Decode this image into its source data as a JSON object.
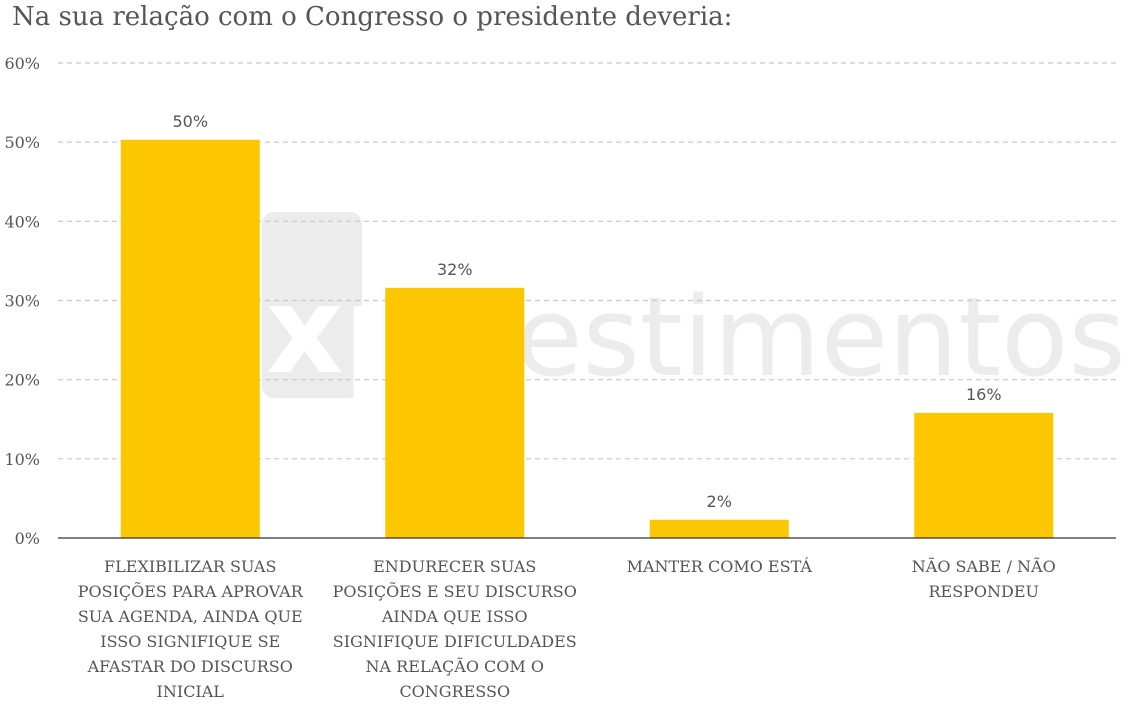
{
  "title": "Na sua relação com o Congresso o presidente deveria:",
  "colors": {
    "bar": "#FDC700",
    "grid": "#c8c8c8",
    "axis": "#333333",
    "text": "#555555",
    "watermark": "#ececec"
  },
  "watermark": {
    "logo_text": "xp",
    "text": "nvestimentos"
  },
  "chart_data": {
    "type": "bar",
    "title": "Na sua relação com o Congresso o presidente deveria:",
    "categories": [
      "FLEXIBILIZAR SUAS POSIÇÕES PARA APROVAR SUA AGENDA, AINDA QUE ISSO SIGNIFIQUE SE AFASTAR DO DISCURSO INICIAL",
      "ENDURECER SUAS POSIÇÕES E SEU DISCURSO AINDA QUE ISSO SIGNIFIQUE DIFICULDADES NA RELAÇÃO COM O CONGRESSO",
      "MANTER COMO ESTÁ",
      "NÃO SABE / NÃO RESPONDEU"
    ],
    "category_lines": [
      [
        "FLEXIBILIZAR SUAS",
        "POSIÇÕES PARA APROVAR",
        "SUA AGENDA, AINDA QUE",
        "ISSO SIGNIFIQUE SE",
        "AFASTAR DO DISCURSO",
        "INICIAL"
      ],
      [
        "ENDURECER SUAS",
        "POSIÇÕES E SEU DISCURSO",
        "AINDA QUE ISSO",
        "SIGNIFIQUE DIFICULDADES",
        "NA RELAÇÃO COM O",
        "CONGRESSO"
      ],
      [
        "MANTER COMO ESTÁ"
      ],
      [
        "NÃO SABE / NÃO",
        "RESPONDEU"
      ]
    ],
    "values": [
      50.3,
      31.6,
      2.3,
      15.8
    ],
    "value_labels": [
      "50%",
      "32%",
      "2%",
      "16%"
    ],
    "xlabel": "",
    "ylabel": "",
    "ylim": [
      0,
      60
    ],
    "yticks": [
      0,
      10,
      20,
      30,
      40,
      50,
      60
    ],
    "ytick_labels": [
      "0%",
      "10%",
      "20%",
      "30%",
      "40%",
      "50%",
      "60%"
    ],
    "grid": true,
    "legend": "none"
  }
}
